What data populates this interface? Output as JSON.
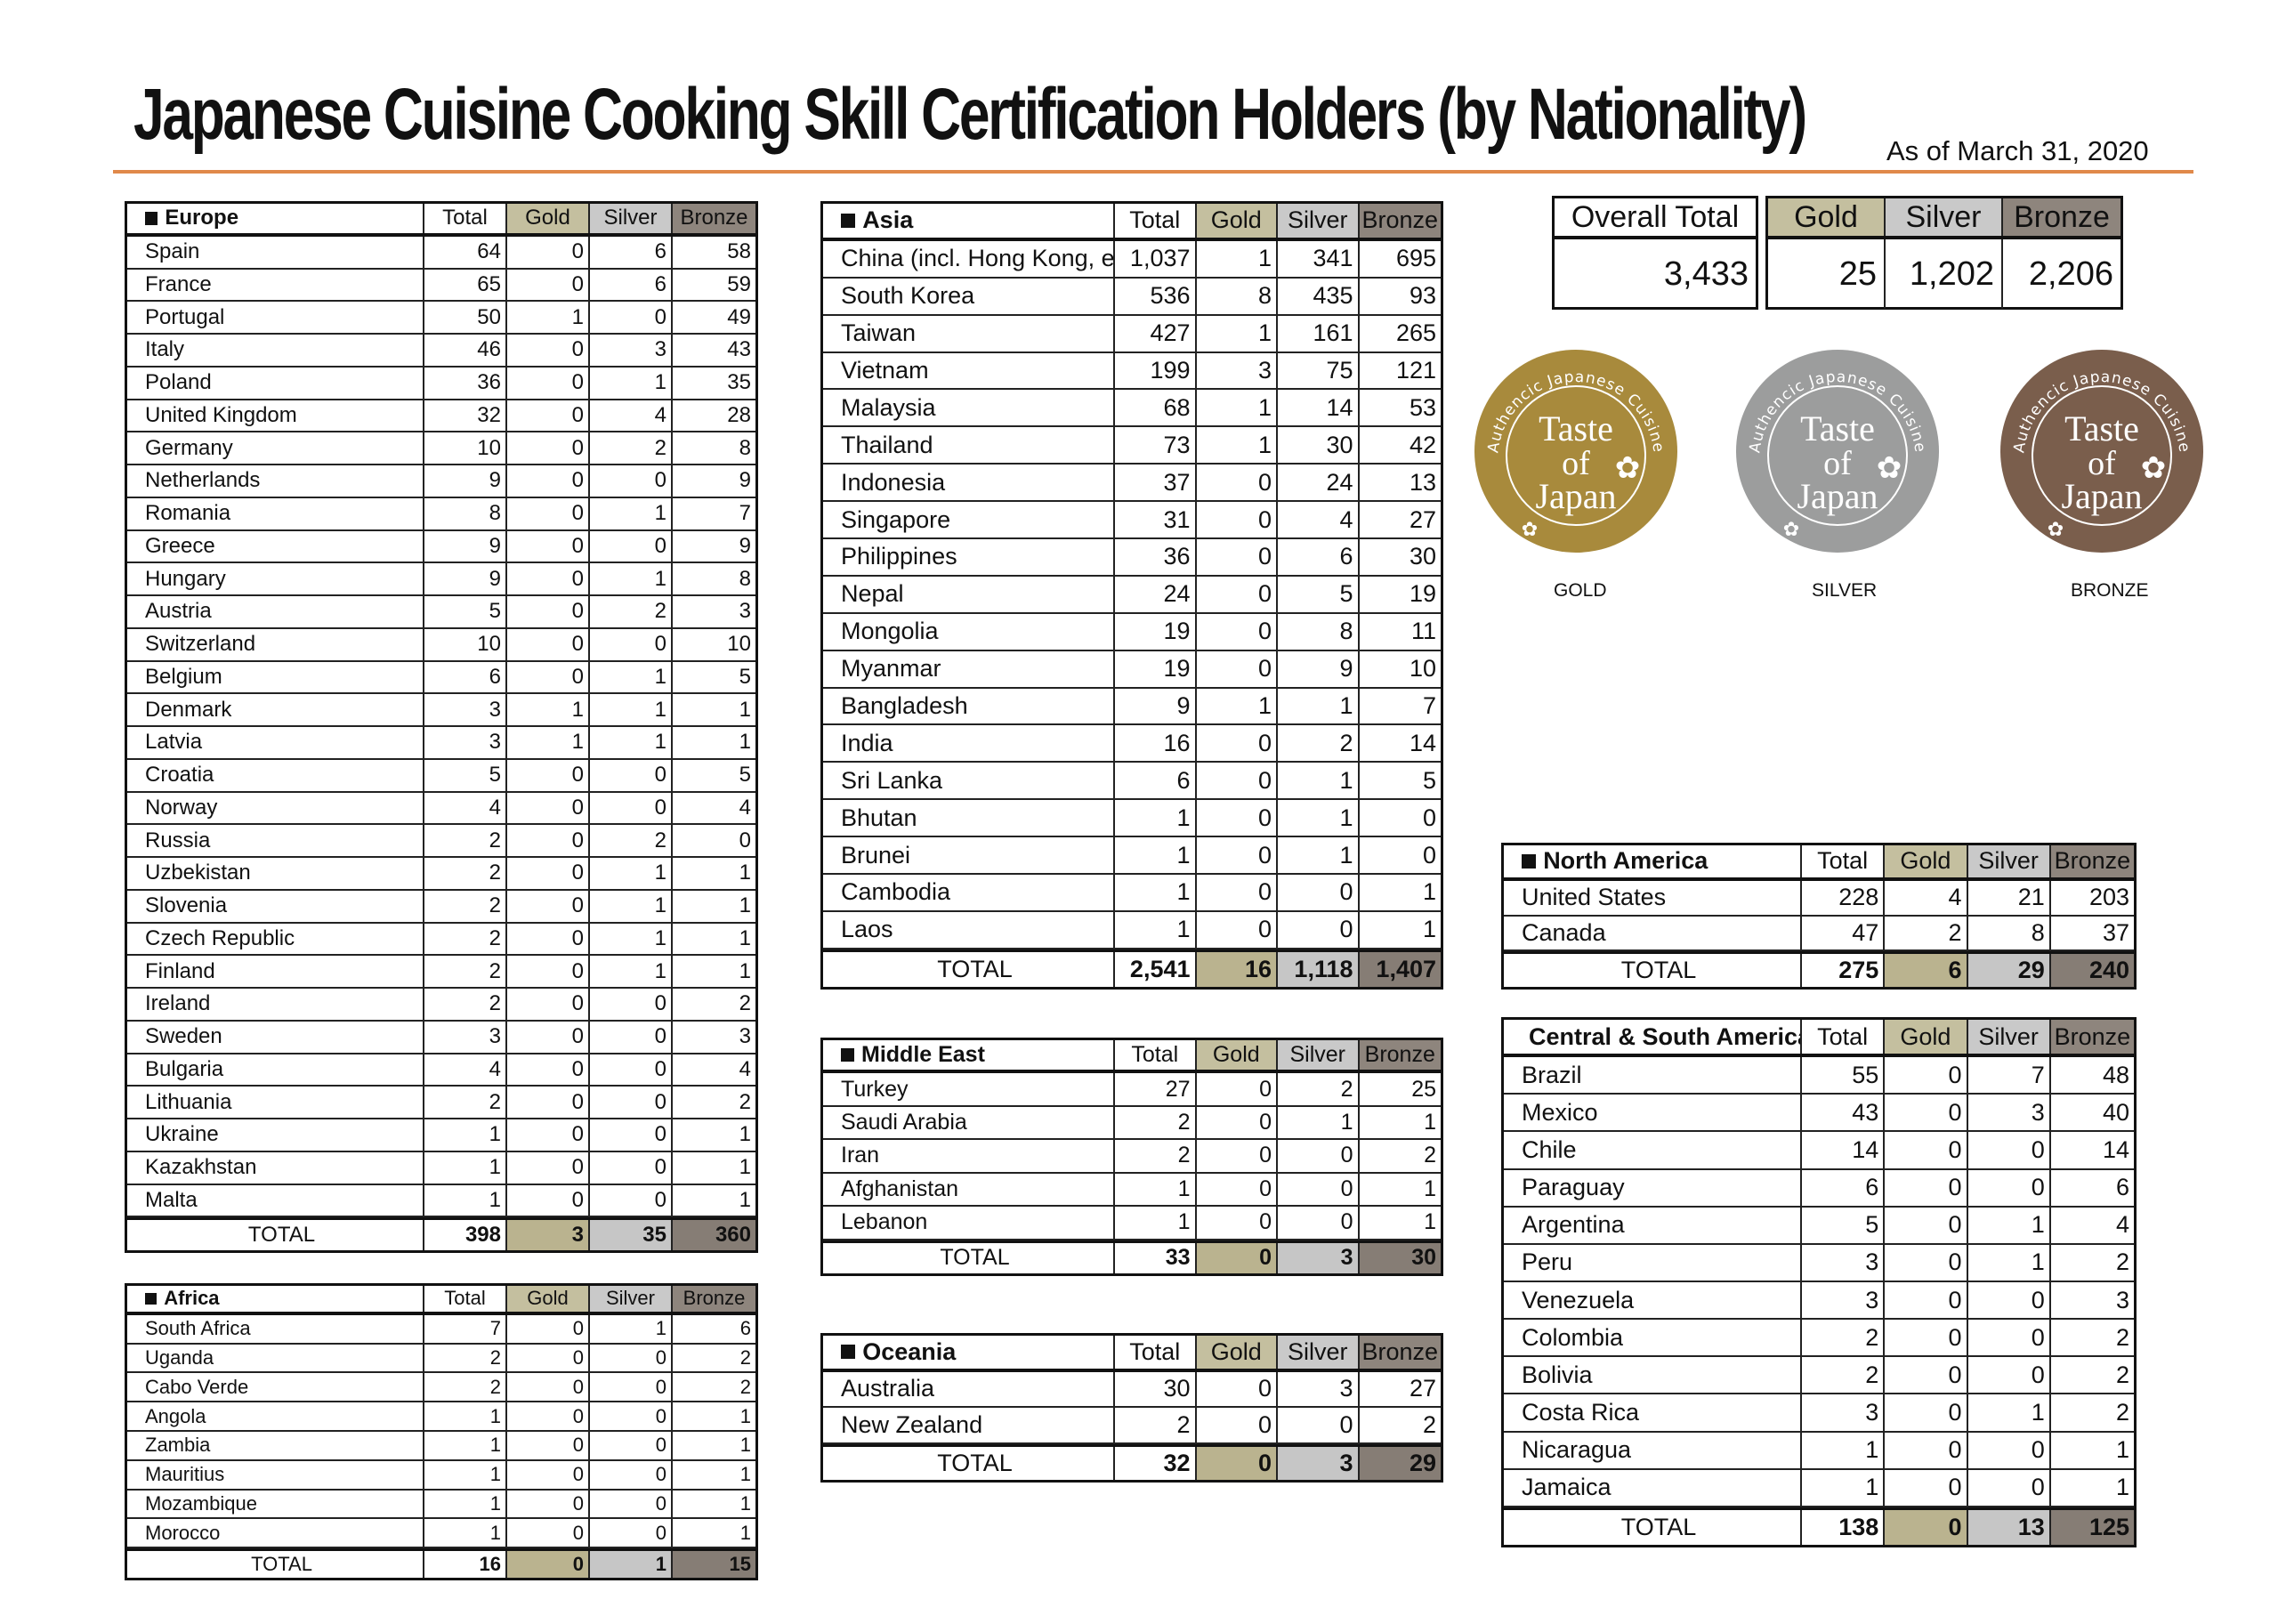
{
  "title": "Japanese Cuisine Cooking Skill Certification Holders (by Nationality)",
  "as_of": "As of March 31, 2020",
  "columns": {
    "total": "Total",
    "gold": "Gold",
    "silver": "Silver",
    "bronze": "Bronze",
    "total_row": "TOTAL"
  },
  "colors": {
    "accent_rule": "#e0894a",
    "gold": "#c4bf9f",
    "silver": "#c9c9c9",
    "bronze": "#8e857d"
  },
  "overall": {
    "label": "Overall Total",
    "total": "3,433",
    "gold": "25",
    "silver": "1,202",
    "bronze": "2,206"
  },
  "logos": [
    {
      "label": "GOLD",
      "color": "#a88a3c",
      "logo_text": "Authencic Japanese Cuisine Taste of Japan"
    },
    {
      "label": "SILVER",
      "color": "#9c9d9d",
      "logo_text": "Authencic Japanese Cuisine Taste of Japan"
    },
    {
      "label": "BRONZE",
      "color": "#7a5e4c",
      "logo_text": "Authencic Japanese Cuisine Taste of Japan"
    }
  ],
  "regions": {
    "europe": {
      "name": "Europe",
      "rows": [
        [
          "Spain",
          "64",
          "0",
          "6",
          "58"
        ],
        [
          "France",
          "65",
          "0",
          "6",
          "59"
        ],
        [
          "Portugal",
          "50",
          "1",
          "0",
          "49"
        ],
        [
          "Italy",
          "46",
          "0",
          "3",
          "43"
        ],
        [
          "Poland",
          "36",
          "0",
          "1",
          "35"
        ],
        [
          "United Kingdom",
          "32",
          "0",
          "4",
          "28"
        ],
        [
          "Germany",
          "10",
          "0",
          "2",
          "8"
        ],
        [
          "Netherlands",
          "9",
          "0",
          "0",
          "9"
        ],
        [
          "Romania",
          "8",
          "0",
          "1",
          "7"
        ],
        [
          "Greece",
          "9",
          "0",
          "0",
          "9"
        ],
        [
          "Hungary",
          "9",
          "0",
          "1",
          "8"
        ],
        [
          "Austria",
          "5",
          "0",
          "2",
          "3"
        ],
        [
          "Switzerland",
          "10",
          "0",
          "0",
          "10"
        ],
        [
          "Belgium",
          "6",
          "0",
          "1",
          "5"
        ],
        [
          "Denmark",
          "3",
          "1",
          "1",
          "1"
        ],
        [
          "Latvia",
          "3",
          "1",
          "1",
          "1"
        ],
        [
          "Croatia",
          "5",
          "0",
          "0",
          "5"
        ],
        [
          "Norway",
          "4",
          "0",
          "0",
          "4"
        ],
        [
          "Russia",
          "2",
          "0",
          "2",
          "0"
        ],
        [
          "Uzbekistan",
          "2",
          "0",
          "1",
          "1"
        ],
        [
          "Slovenia",
          "2",
          "0",
          "1",
          "1"
        ],
        [
          "Czech Republic",
          "2",
          "0",
          "1",
          "1"
        ],
        [
          "Finland",
          "2",
          "0",
          "1",
          "1"
        ],
        [
          "Ireland",
          "2",
          "0",
          "0",
          "2"
        ],
        [
          "Sweden",
          "3",
          "0",
          "0",
          "3"
        ],
        [
          "Bulgaria",
          "4",
          "0",
          "0",
          "4"
        ],
        [
          "Lithuania",
          "2",
          "0",
          "0",
          "2"
        ],
        [
          "Ukraine",
          "1",
          "0",
          "0",
          "1"
        ],
        [
          "Kazakhstan",
          "1",
          "0",
          "0",
          "1"
        ],
        [
          "Malta",
          "1",
          "0",
          "0",
          "1"
        ]
      ],
      "total": [
        "398",
        "3",
        "35",
        "360"
      ]
    },
    "africa": {
      "name": "Africa",
      "rows": [
        [
          "South Africa",
          "7",
          "0",
          "1",
          "6"
        ],
        [
          "Uganda",
          "2",
          "0",
          "0",
          "2"
        ],
        [
          "Cabo Verde",
          "2",
          "0",
          "0",
          "2"
        ],
        [
          "Angola",
          "1",
          "0",
          "0",
          "1"
        ],
        [
          "Zambia",
          "1",
          "0",
          "0",
          "1"
        ],
        [
          "Mauritius",
          "1",
          "0",
          "0",
          "1"
        ],
        [
          "Mozambique",
          "1",
          "0",
          "0",
          "1"
        ],
        [
          "Morocco",
          "1",
          "0",
          "0",
          "1"
        ]
      ],
      "total": [
        "16",
        "0",
        "1",
        "15"
      ]
    },
    "asia": {
      "name": "Asia",
      "rows": [
        [
          "China (incl. Hong Kong, etc.)",
          "1,037",
          "1",
          "341",
          "695"
        ],
        [
          "South Korea",
          "536",
          "8",
          "435",
          "93"
        ],
        [
          "Taiwan",
          "427",
          "1",
          "161",
          "265"
        ],
        [
          "Vietnam",
          "199",
          "3",
          "75",
          "121"
        ],
        [
          "Malaysia",
          "68",
          "1",
          "14",
          "53"
        ],
        [
          "Thailand",
          "73",
          "1",
          "30",
          "42"
        ],
        [
          "Indonesia",
          "37",
          "0",
          "24",
          "13"
        ],
        [
          "Singapore",
          "31",
          "0",
          "4",
          "27"
        ],
        [
          "Philippines",
          "36",
          "0",
          "6",
          "30"
        ],
        [
          "Nepal",
          "24",
          "0",
          "5",
          "19"
        ],
        [
          "Mongolia",
          "19",
          "0",
          "8",
          "11"
        ],
        [
          "Myanmar",
          "19",
          "0",
          "9",
          "10"
        ],
        [
          "Bangladesh",
          "9",
          "1",
          "1",
          "7"
        ],
        [
          "India",
          "16",
          "0",
          "2",
          "14"
        ],
        [
          "Sri Lanka",
          "6",
          "0",
          "1",
          "5"
        ],
        [
          "Bhutan",
          "1",
          "0",
          "1",
          "0"
        ],
        [
          "Brunei",
          "1",
          "0",
          "1",
          "0"
        ],
        [
          "Cambodia",
          "1",
          "0",
          "0",
          "1"
        ],
        [
          "Laos",
          "1",
          "0",
          "0",
          "1"
        ]
      ],
      "total": [
        "2,541",
        "16",
        "1,118",
        "1,407"
      ]
    },
    "middle_east": {
      "name": "Middle East",
      "rows": [
        [
          "Turkey",
          "27",
          "0",
          "2",
          "25"
        ],
        [
          "Saudi Arabia",
          "2",
          "0",
          "1",
          "1"
        ],
        [
          "Iran",
          "2",
          "0",
          "0",
          "2"
        ],
        [
          "Afghanistan",
          "1",
          "0",
          "0",
          "1"
        ],
        [
          "Lebanon",
          "1",
          "0",
          "0",
          "1"
        ]
      ],
      "total": [
        "33",
        "0",
        "3",
        "30"
      ]
    },
    "oceania": {
      "name": "Oceania",
      "rows": [
        [
          "Australia",
          "30",
          "0",
          "3",
          "27"
        ],
        [
          "New Zealand",
          "2",
          "0",
          "0",
          "2"
        ]
      ],
      "total": [
        "32",
        "0",
        "3",
        "29"
      ]
    },
    "north_america": {
      "name": "North America",
      "rows": [
        [
          "United States",
          "228",
          "4",
          "21",
          "203"
        ],
        [
          "Canada",
          "47",
          "2",
          "8",
          "37"
        ]
      ],
      "total": [
        "275",
        "6",
        "29",
        "240"
      ]
    },
    "central_south_america": {
      "name": "Central & South America",
      "rows": [
        [
          "Brazil",
          "55",
          "0",
          "7",
          "48"
        ],
        [
          "Mexico",
          "43",
          "0",
          "3",
          "40"
        ],
        [
          "Chile",
          "14",
          "0",
          "0",
          "14"
        ],
        [
          "Paraguay",
          "6",
          "0",
          "0",
          "6"
        ],
        [
          "Argentina",
          "5",
          "0",
          "1",
          "4"
        ],
        [
          "Peru",
          "3",
          "0",
          "1",
          "2"
        ],
        [
          "Venezuela",
          "3",
          "0",
          "0",
          "3"
        ],
        [
          "Colombia",
          "2",
          "0",
          "0",
          "2"
        ],
        [
          "Bolivia",
          "2",
          "0",
          "0",
          "2"
        ],
        [
          "Costa Rica",
          "3",
          "0",
          "1",
          "2"
        ],
        [
          "Nicaragua",
          "1",
          "0",
          "0",
          "1"
        ],
        [
          "Jamaica",
          "1",
          "0",
          "0",
          "1"
        ]
      ],
      "total": [
        "138",
        "0",
        "13",
        "125"
      ]
    }
  }
}
